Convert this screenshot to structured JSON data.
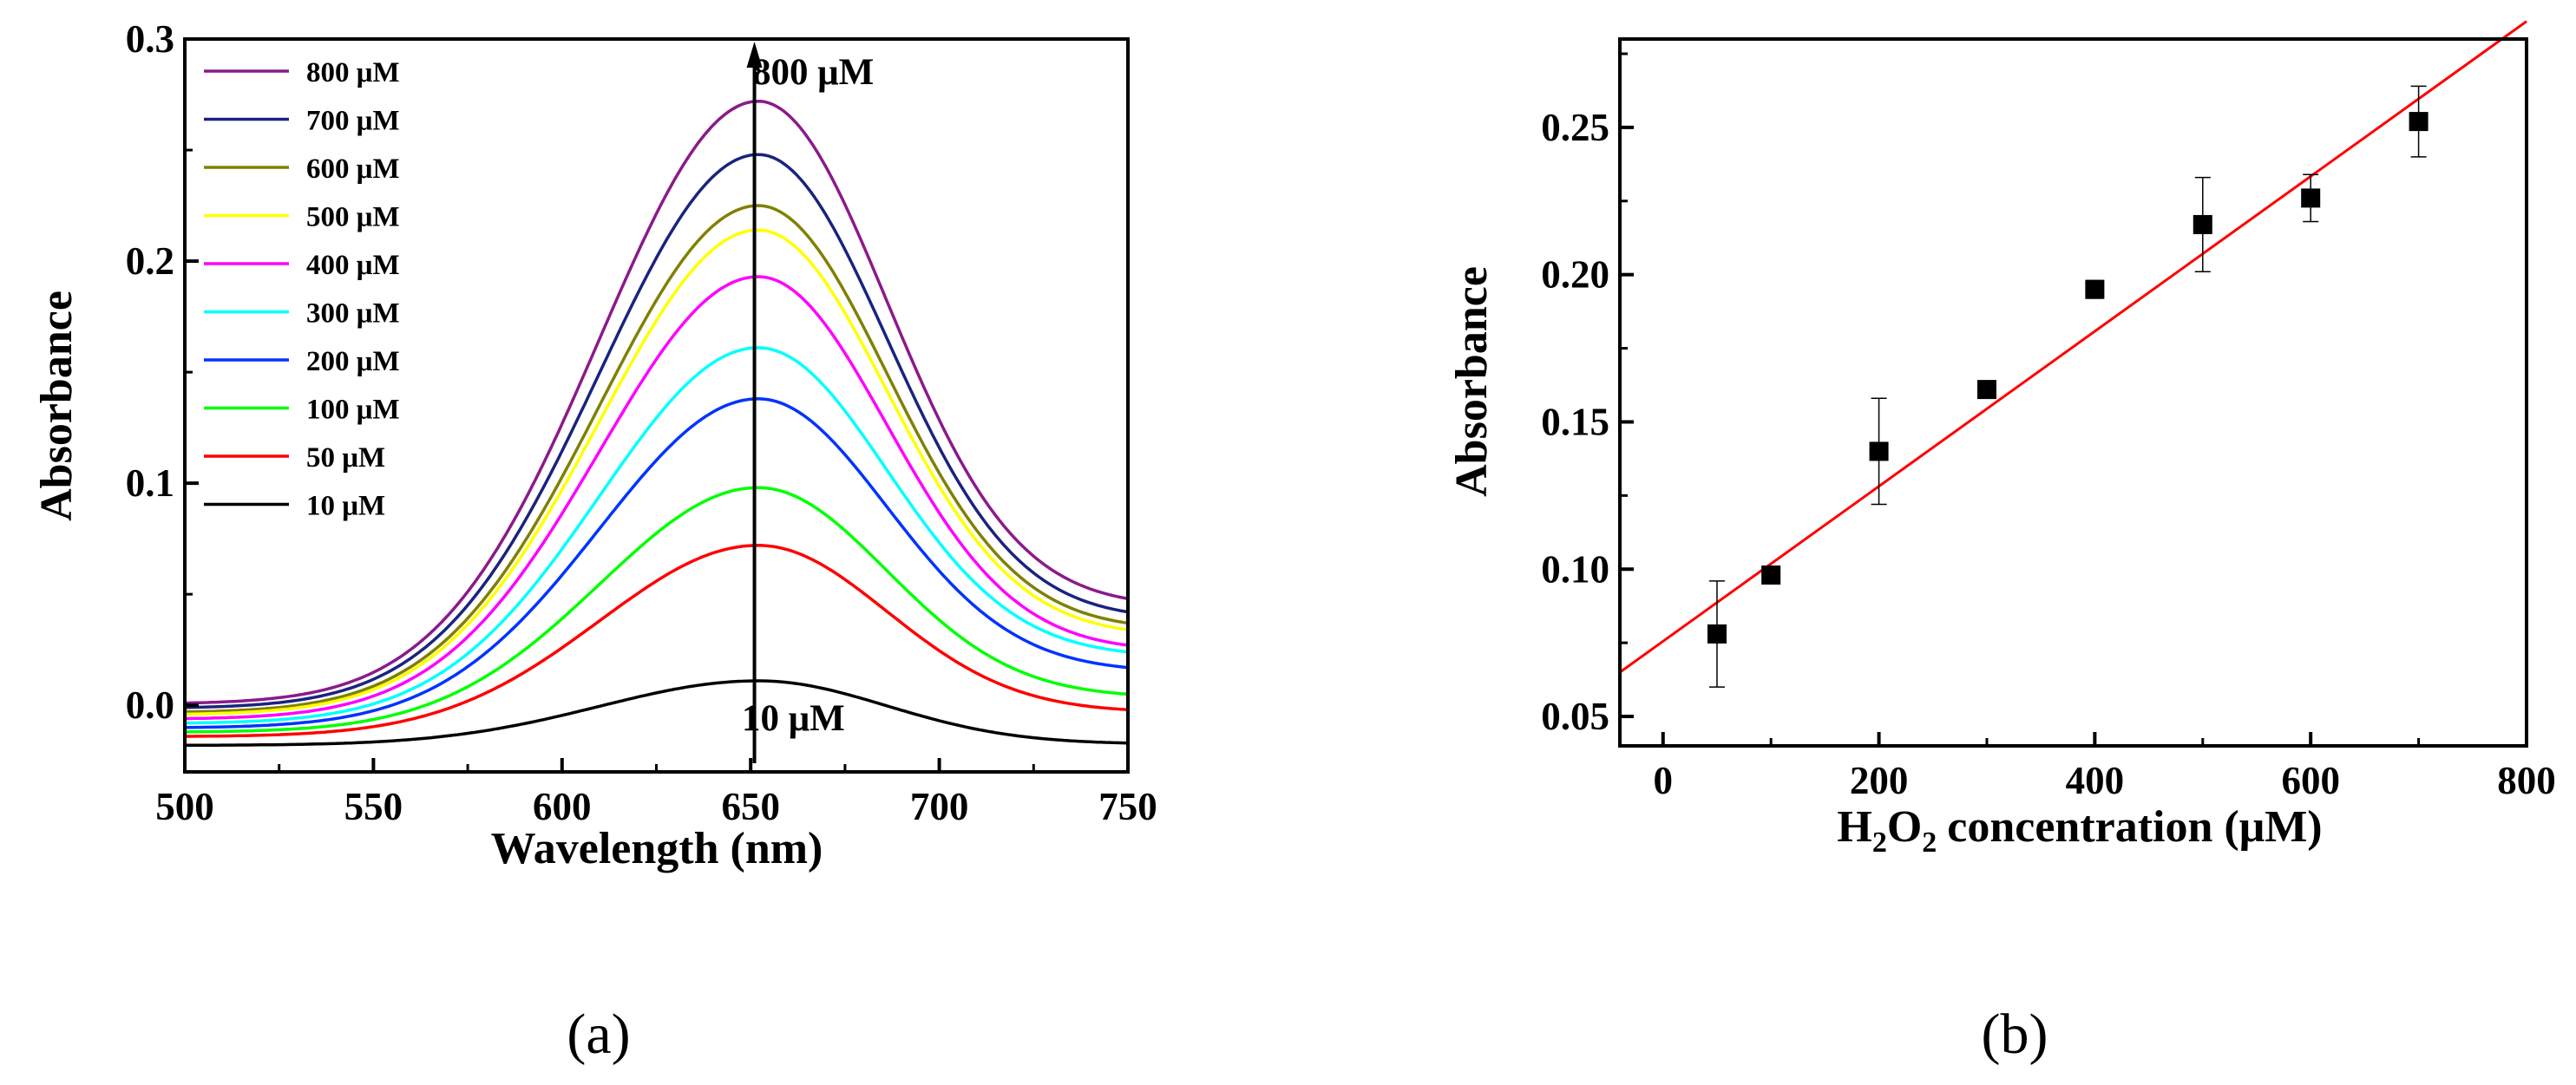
{
  "chart_data": [
    {
      "type": "line",
      "panel_label": "(a)",
      "xlabel": "Wavelength (nm)",
      "ylabel": "Absorbance",
      "xlim": [
        500,
        750
      ],
      "ylim": [
        -0.03,
        0.3
      ],
      "xticks": [
        "500",
        "550",
        "600",
        "650",
        "700",
        "750"
      ],
      "yticks": [
        "0.0",
        "0.1",
        "0.2",
        "0.3"
      ],
      "grid": false,
      "legend_position": "top-left",
      "annotations": {
        "top": "800 μM",
        "bottom": "10 μM",
        "arrow_at_x": 651
      },
      "peak_wavelength": 652,
      "series": [
        {
          "name": "800 μM",
          "color": "#8B1A8B",
          "left": 0.001,
          "peak": 0.272,
          "right": 0.048
        },
        {
          "name": "700 μM",
          "color": "#1A237E",
          "left": -0.001,
          "peak": 0.248,
          "right": 0.042
        },
        {
          "name": "600 μM",
          "color": "#808000",
          "left": -0.003,
          "peak": 0.225,
          "right": 0.037
        },
        {
          "name": "500 μM",
          "color": "#FFFF00",
          "left": -0.004,
          "peak": 0.214,
          "right": 0.034
        },
        {
          "name": "400 μM",
          "color": "#FF00FF",
          "left": -0.006,
          "peak": 0.193,
          "right": 0.027
        },
        {
          "name": "300 μM",
          "color": "#00FFFF",
          "left": -0.008,
          "peak": 0.161,
          "right": 0.024
        },
        {
          "name": "200 μM",
          "color": "#0033FF",
          "left": -0.01,
          "peak": 0.138,
          "right": 0.017
        },
        {
          "name": "100 μM",
          "color": "#00FF00",
          "left": -0.012,
          "peak": 0.098,
          "right": 0.005
        },
        {
          "name": "50 μM",
          "color": "#FF0000",
          "left": -0.014,
          "peak": 0.072,
          "right": -0.002
        },
        {
          "name": "10 μM",
          "color": "#000000",
          "left": -0.018,
          "peak": 0.011,
          "right": -0.017
        }
      ]
    },
    {
      "type": "scatter",
      "panel_label": "(b)",
      "xlabel": "concentration (μM)",
      "xlabel_species": [
        "H",
        "2",
        "O",
        "2"
      ],
      "ylabel": "Absorbance",
      "xlim": [
        -40,
        800
      ],
      "ylim": [
        0.04,
        0.28
      ],
      "xticks": [
        "0",
        "200",
        "400",
        "600",
        "800"
      ],
      "yticks": [
        "0.05",
        "0.10",
        "0.15",
        "0.20",
        "0.25"
      ],
      "grid": false,
      "points": [
        {
          "x": 50,
          "y": 0.078,
          "err": 0.018
        },
        {
          "x": 100,
          "y": 0.098,
          "err": 0.0
        },
        {
          "x": 200,
          "y": 0.14,
          "err": 0.018
        },
        {
          "x": 300,
          "y": 0.161,
          "err": 0.0
        },
        {
          "x": 400,
          "y": 0.195,
          "err": 0.003
        },
        {
          "x": 500,
          "y": 0.217,
          "err": 0.016
        },
        {
          "x": 600,
          "y": 0.226,
          "err": 0.008
        },
        {
          "x": 700,
          "y": 0.252,
          "err": 0.012
        }
      ],
      "fit_line": {
        "color": "#FF0000",
        "x": [
          -40,
          800
        ],
        "y": [
          0.065,
          0.286
        ]
      }
    }
  ]
}
